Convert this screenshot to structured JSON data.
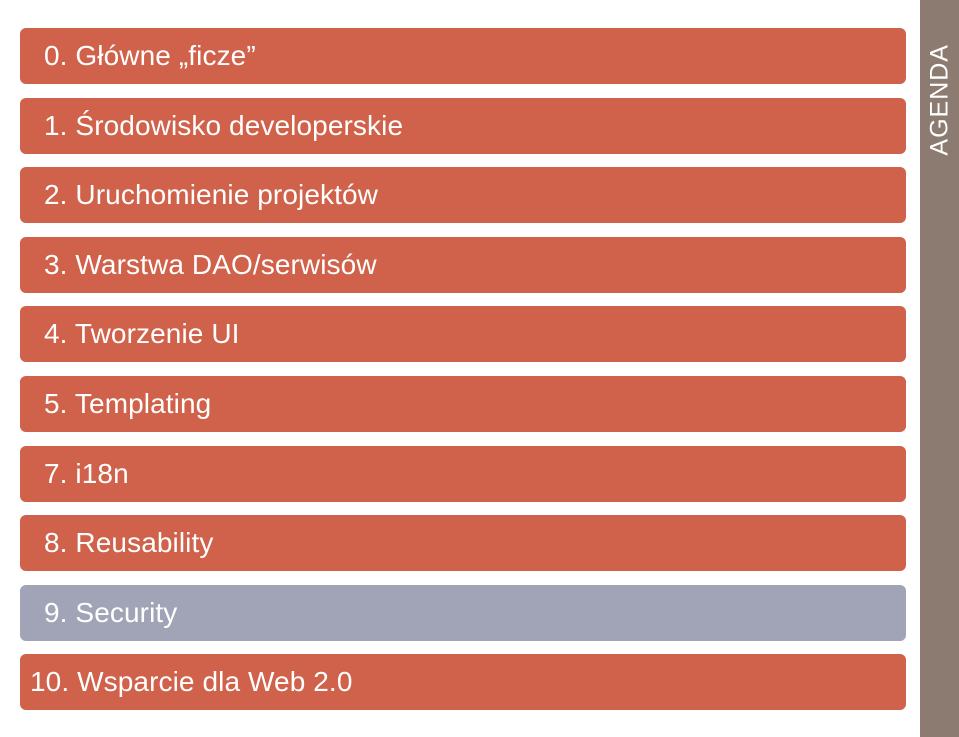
{
  "agenda": {
    "title": "AGENDA",
    "items": [
      {
        "label": "0. Główne „ficze”",
        "color": "#d0614a"
      },
      {
        "label": "1. Środowisko developerskie",
        "color": "#d0614a"
      },
      {
        "label": "2. Uruchomienie projektów",
        "color": "#d0614a"
      },
      {
        "label": "3. Warstwa DAO/serwisów",
        "color": "#d0614a"
      },
      {
        "label": "4. Tworzenie UI",
        "color": "#d0614a"
      },
      {
        "label": "5. Templating",
        "color": "#d0614a"
      },
      {
        "label": "7. i18n",
        "color": "#d0614a"
      },
      {
        "label": "8. Reusability",
        "color": "#d0614a"
      },
      {
        "label": "9. Security",
        "color": "#a0a4b6"
      },
      {
        "label": "10. Wsparcie dla Web 2.0",
        "color": "#d0614a"
      }
    ]
  },
  "colors": {
    "item_default": "#d0614a",
    "item_current": "#a0a4b6",
    "sidebar": "#8c7b70"
  }
}
